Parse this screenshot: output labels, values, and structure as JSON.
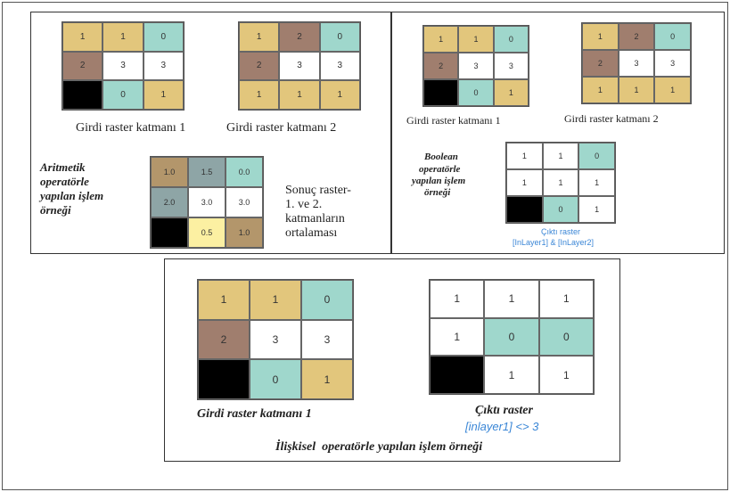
{
  "panel_arith": {
    "grid1": [
      [
        "1",
        "1",
        "0"
      ],
      [
        "2",
        "3",
        "3"
      ],
      [
        "",
        "0",
        "1"
      ]
    ],
    "grid2": [
      [
        "1",
        "2",
        "0"
      ],
      [
        "2",
        "3",
        "3"
      ],
      [
        "1",
        "1",
        "1"
      ]
    ],
    "label1": "Girdi raster katmanı 1",
    "label2": "Girdi raster katmanı 2",
    "example_title": [
      "Aritmetik",
      "operatörle",
      "yapılan işlem",
      "örneği"
    ],
    "result": [
      [
        "1.0",
        "1.5",
        "0.0"
      ],
      [
        "2.0",
        "3.0",
        "3.0"
      ],
      [
        "",
        "0.5",
        "1.0"
      ]
    ],
    "result_caption": [
      "Sonuç raster-",
      "1. ve 2.",
      "katmanların",
      "ortalaması"
    ]
  },
  "panel_bool": {
    "grid1": [
      [
        "1",
        "1",
        "0"
      ],
      [
        "2",
        "3",
        "3"
      ],
      [
        "",
        "0",
        "1"
      ]
    ],
    "grid2": [
      [
        "1",
        "2",
        "0"
      ],
      [
        "2",
        "3",
        "3"
      ],
      [
        "1",
        "1",
        "1"
      ]
    ],
    "label1": "Girdi raster katmanı 1",
    "label2": "Girdi raster katmanı 2",
    "example_title": [
      "Boolean",
      "operatörle",
      "yapılan işlem",
      "örneği"
    ],
    "output": [
      [
        "1",
        "1",
        "0"
      ],
      [
        "1",
        "1",
        "1"
      ],
      [
        "",
        "0",
        "1"
      ]
    ],
    "output_caption": [
      "Çıktı raster",
      "[InLayer1] & [InLayer2]"
    ]
  },
  "panel_rel": {
    "grid1": [
      [
        "1",
        "1",
        "0"
      ],
      [
        "2",
        "3",
        "3"
      ],
      [
        "",
        "0",
        "1"
      ]
    ],
    "label1": "Girdi raster katmanı 1",
    "output": [
      [
        "1",
        "1",
        "1"
      ],
      [
        "1",
        "0",
        "0"
      ],
      [
        "",
        "1",
        "1"
      ]
    ],
    "output_caption": [
      "Çıktı raster",
      "[inlayer1] <> 3"
    ],
    "footer": "İlişkisel  operatörle yapılan işlem örneği"
  },
  "colors": {
    "tan": "#e2c67c",
    "brown": "#a07e6e",
    "teal": "#9fd7cc",
    "white": "#ffffff",
    "black": "#000000",
    "dark_tan": "#b3966b",
    "grey": "#8ea5a6",
    "yellow": "#fcf0a2",
    "caption_blue": "#3a86d6"
  }
}
